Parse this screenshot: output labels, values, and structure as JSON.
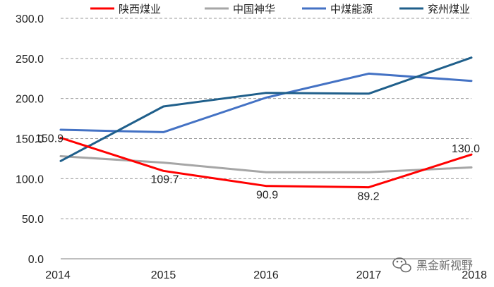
{
  "chart_data": {
    "type": "line",
    "title": "",
    "xlabel": "",
    "ylabel": "",
    "x": [
      "2014",
      "2015",
      "2016",
      "2017",
      "2018"
    ],
    "ylim": [
      0,
      300
    ],
    "y_ticks": [
      "0.0",
      "50.0",
      "100.0",
      "150.0",
      "200.0",
      "250.0",
      "300.0"
    ],
    "grid": "horizontal dashed",
    "legend_position": "top",
    "series": [
      {
        "name": "陕西煤业",
        "color": "#ff0000",
        "values": [
          150.9,
          109.7,
          90.9,
          89.2,
          130.0
        ],
        "labels": [
          "150.9",
          "109.7",
          "90.9",
          "89.2",
          "130.0"
        ]
      },
      {
        "name": "中国神华",
        "color": "#a6a6a6",
        "values": [
          128,
          120,
          108,
          108,
          114
        ]
      },
      {
        "name": "中煤能源",
        "color": "#4472c4",
        "values": [
          161,
          158,
          201,
          231,
          222
        ]
      },
      {
        "name": "兖州煤业",
        "color": "#1f5f8b",
        "values": [
          122,
          190,
          207,
          206,
          251
        ]
      }
    ]
  },
  "watermark": {
    "text": "黑金新视野",
    "icon": "wechat-icon"
  }
}
